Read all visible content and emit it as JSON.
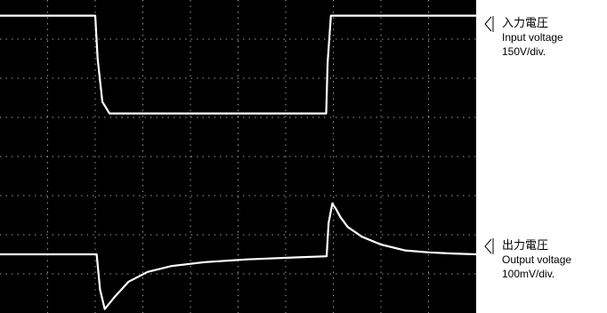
{
  "chart_data": {
    "type": "line",
    "title": "",
    "xlabel": "",
    "ylabel": "",
    "grid": true,
    "grid_divisions": {
      "x": 10,
      "y": 8
    },
    "background": "#000000",
    "trace_color": "#ffffff",
    "series": [
      {
        "name": "入力電圧",
        "scale": "150V/div.",
        "units": "div",
        "x_div": [
          0,
          2.0,
          2.05,
          2.15,
          2.3,
          6.85,
          6.88,
          6.95,
          10
        ],
        "y_div": [
          7.6,
          7.6,
          6.5,
          5.4,
          5.1,
          5.1,
          6.4,
          7.6,
          7.6
        ]
      },
      {
        "name": "出力電圧",
        "scale": "100mV/div.",
        "units": "div",
        "x_div": [
          0,
          2.03,
          2.1,
          2.2,
          2.4,
          2.7,
          3.1,
          3.6,
          4.3,
          5.2,
          6.2,
          6.86,
          6.9,
          6.98,
          7.06,
          7.15,
          7.3,
          7.6,
          8.0,
          8.5,
          9.0,
          9.5,
          10
        ],
        "y_div": [
          1.5,
          1.5,
          0.6,
          0.1,
          0.4,
          0.8,
          1.05,
          1.2,
          1.3,
          1.37,
          1.42,
          1.45,
          2.3,
          2.8,
          2.65,
          2.45,
          2.2,
          1.95,
          1.75,
          1.6,
          1.55,
          1.52,
          1.5
        ]
      }
    ]
  },
  "labels": {
    "input": {
      "jp": "入力電圧",
      "en": "Input voltage",
      "scale": "150V/div."
    },
    "output": {
      "jp": "出力電圧",
      "en": "Output voltage",
      "scale": "100mV/div."
    }
  }
}
